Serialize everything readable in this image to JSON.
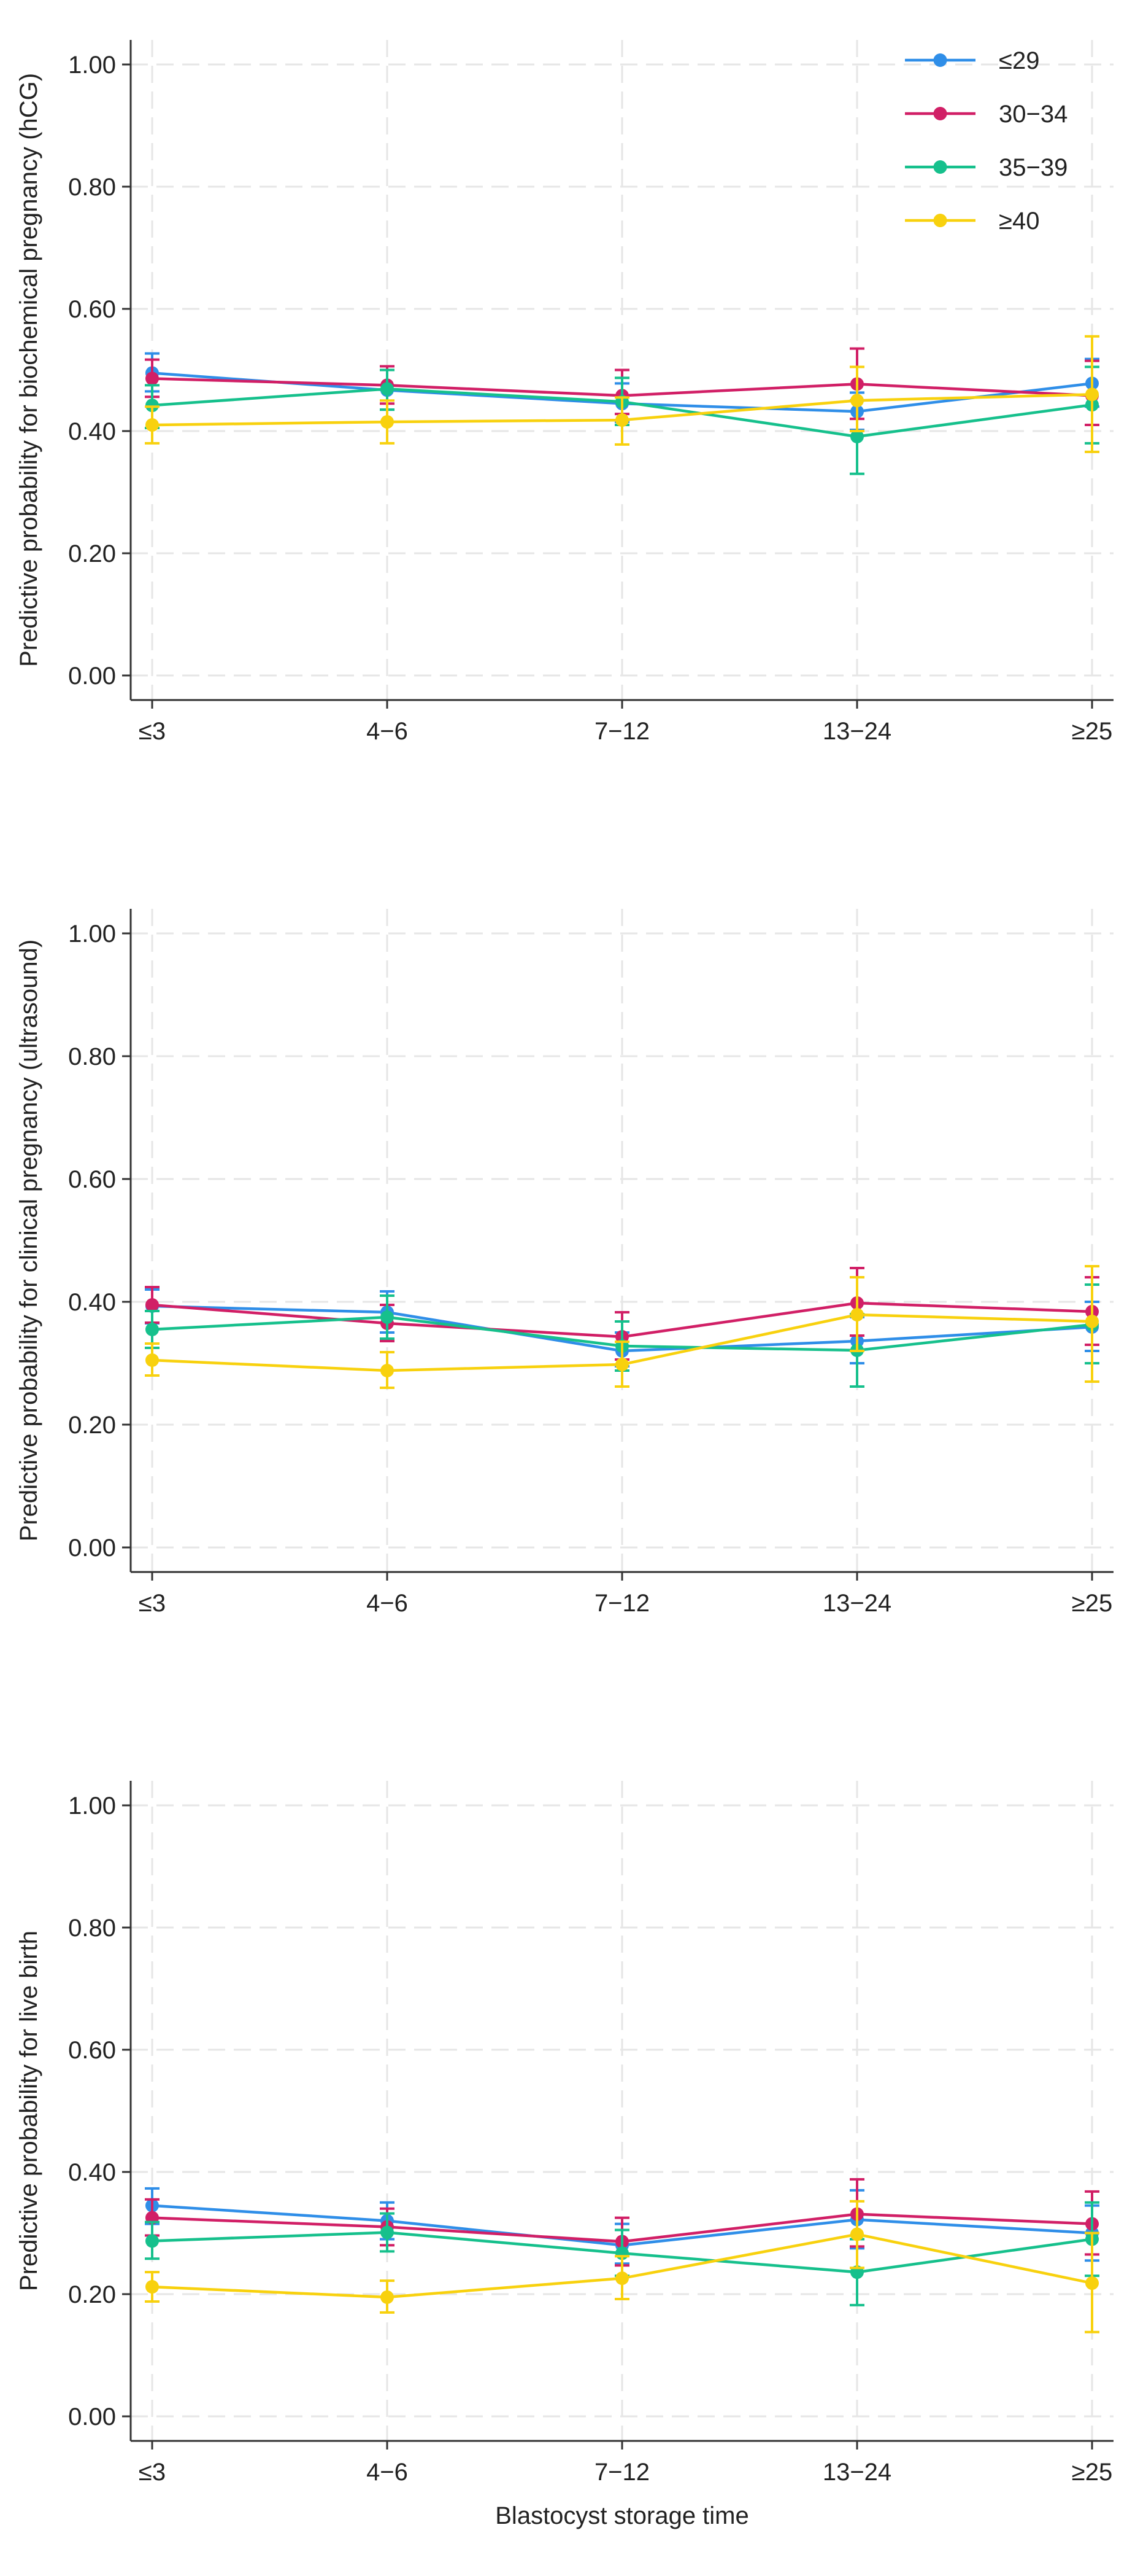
{
  "chart_data": [
    {
      "type": "line",
      "title": "",
      "xlabel": "",
      "ylabel": "Predictive probability for biochemical pregnancy (hCG)",
      "categories": [
        "≤3",
        "4−6",
        "7−12",
        "13−24",
        "≥25"
      ],
      "ylim": [
        0,
        1
      ],
      "yticks": [
        "0.00",
        "0.20",
        "0.40",
        "0.60",
        "0.80",
        "1.00"
      ],
      "grid": true,
      "legend": "top-right",
      "series": [
        {
          "name": "≤29",
          "color": "#2f8ee8",
          "values": [
            0.495,
            0.467,
            0.445,
            0.432,
            0.478
          ],
          "lower": [
            0.465,
            0.435,
            0.415,
            0.402,
            0.44
          ],
          "upper": [
            0.527,
            0.5,
            0.478,
            0.463,
            0.518
          ]
        },
        {
          "name": "30−34",
          "color": "#d11f66",
          "values": [
            0.486,
            0.475,
            0.458,
            0.477,
            0.458
          ],
          "lower": [
            0.456,
            0.445,
            0.428,
            0.42,
            0.41
          ],
          "upper": [
            0.517,
            0.506,
            0.5,
            0.535,
            0.515
          ]
        },
        {
          "name": "35−39",
          "color": "#16c08c",
          "values": [
            0.442,
            0.469,
            0.448,
            0.391,
            0.443
          ],
          "lower": [
            0.405,
            0.435,
            0.41,
            0.33,
            0.38
          ],
          "upper": [
            0.475,
            0.5,
            0.487,
            0.45,
            0.505
          ]
        },
        {
          "name": "≥40",
          "color": "#f8d10e",
          "values": [
            0.41,
            0.415,
            0.418,
            0.45,
            0.46
          ],
          "lower": [
            0.38,
            0.38,
            0.378,
            0.4,
            0.366
          ],
          "upper": [
            0.44,
            0.45,
            0.455,
            0.505,
            0.555
          ]
        }
      ]
    },
    {
      "type": "line",
      "title": "",
      "xlabel": "",
      "ylabel": "Predictive probability for clinical pregnancy (ultrasound)",
      "categories": [
        "≤3",
        "4−6",
        "7−12",
        "13−24",
        "≥25"
      ],
      "ylim": [
        0,
        1
      ],
      "yticks": [
        "0.00",
        "0.20",
        "0.40",
        "0.60",
        "0.80",
        "1.00"
      ],
      "grid": true,
      "legend": "none",
      "series": [
        {
          "name": "≤29",
          "color": "#2f8ee8",
          "values": [
            0.393,
            0.383,
            0.32,
            0.336,
            0.359
          ],
          "lower": [
            0.365,
            0.35,
            0.295,
            0.3,
            0.32
          ],
          "upper": [
            0.42,
            0.417,
            0.35,
            0.375,
            0.4
          ]
        },
        {
          "name": "30−34",
          "color": "#d11f66",
          "values": [
            0.395,
            0.365,
            0.343,
            0.398,
            0.384
          ],
          "lower": [
            0.366,
            0.336,
            0.306,
            0.345,
            0.33
          ],
          "upper": [
            0.424,
            0.395,
            0.383,
            0.455,
            0.44
          ]
        },
        {
          "name": "35−39",
          "color": "#16c08c",
          "values": [
            0.355,
            0.375,
            0.328,
            0.321,
            0.363
          ],
          "lower": [
            0.325,
            0.34,
            0.288,
            0.262,
            0.3
          ],
          "upper": [
            0.385,
            0.41,
            0.368,
            0.38,
            0.428
          ]
        },
        {
          "name": "≥40",
          "color": "#f8d10e",
          "values": [
            0.305,
            0.288,
            0.298,
            0.379,
            0.368
          ],
          "lower": [
            0.28,
            0.26,
            0.262,
            0.32,
            0.27
          ],
          "upper": [
            0.332,
            0.318,
            0.335,
            0.44,
            0.458
          ]
        }
      ]
    },
    {
      "type": "line",
      "title": "",
      "xlabel": "Blastocyst storage time",
      "ylabel": "Predictive probability for live birth",
      "categories": [
        "≤3",
        "4−6",
        "7−12",
        "13−24",
        "≥25"
      ],
      "ylim": [
        0,
        1
      ],
      "yticks": [
        "0.00",
        "0.20",
        "0.40",
        "0.60",
        "0.80",
        "1.00"
      ],
      "grid": true,
      "legend": "none",
      "series": [
        {
          "name": "≤29",
          "color": "#2f8ee8",
          "values": [
            0.345,
            0.32,
            0.28,
            0.322,
            0.3
          ],
          "lower": [
            0.315,
            0.29,
            0.25,
            0.275,
            0.255
          ],
          "upper": [
            0.373,
            0.35,
            0.315,
            0.37,
            0.345
          ]
        },
        {
          "name": "30−34",
          "color": "#d11f66",
          "values": [
            0.325,
            0.31,
            0.286,
            0.331,
            0.315
          ],
          "lower": [
            0.296,
            0.28,
            0.247,
            0.278,
            0.265
          ],
          "upper": [
            0.355,
            0.34,
            0.325,
            0.388,
            0.368
          ]
        },
        {
          "name": "35−39",
          "color": "#16c08c",
          "values": [
            0.287,
            0.301,
            0.267,
            0.236,
            0.29
          ],
          "lower": [
            0.258,
            0.27,
            0.23,
            0.182,
            0.23
          ],
          "upper": [
            0.318,
            0.332,
            0.305,
            0.29,
            0.35
          ]
        },
        {
          "name": "≥40",
          "color": "#f8d10e",
          "values": [
            0.212,
            0.195,
            0.226,
            0.298,
            0.218
          ],
          "lower": [
            0.188,
            0.17,
            0.192,
            0.243,
            0.138
          ],
          "upper": [
            0.236,
            0.222,
            0.262,
            0.352,
            0.3
          ]
        }
      ]
    }
  ]
}
